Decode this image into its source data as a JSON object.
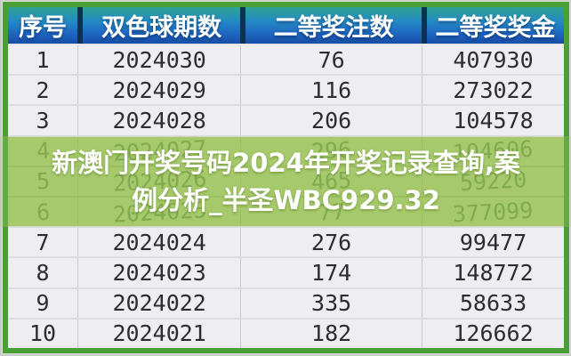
{
  "chart_data": {
    "type": "table",
    "title": "",
    "columns": [
      "序号",
      "双色球期数",
      "二等奖注数",
      "二等奖奖金"
    ],
    "rows": [
      [
        1,
        2024030,
        76,
        407930
      ],
      [
        2,
        2024029,
        116,
        273022
      ],
      [
        3,
        2024028,
        206,
        104578
      ],
      [
        4,
        2024027,
        296,
        104606
      ],
      [
        5,
        2024026,
        465,
        59220
      ],
      [
        6,
        2024025,
        77,
        377099
      ],
      [
        7,
        2024024,
        276,
        99477
      ],
      [
        8,
        2024023,
        174,
        148772
      ],
      [
        9,
        2024022,
        335,
        58633
      ],
      [
        10,
        2024021,
        182,
        126662
      ]
    ],
    "notes": "rows 4-6 are covered by a translucent green watermark band"
  },
  "table": {
    "columns": [
      {
        "label": "序号"
      },
      {
        "label": "双色球期数"
      },
      {
        "label": "二等奖注数"
      },
      {
        "label": "二等奖奖金"
      }
    ],
    "rows": [
      {
        "no": "1",
        "period": "2024030",
        "bets": "76",
        "prize": "407930",
        "tinted": false
      },
      {
        "no": "2",
        "period": "2024029",
        "bets": "116",
        "prize": "273022",
        "tinted": false
      },
      {
        "no": "3",
        "period": "2024028",
        "bets": "206",
        "prize": "104578",
        "tinted": false
      },
      {
        "no": "4",
        "period": "2024027",
        "bets": "296",
        "prize": "104606",
        "tinted": true
      },
      {
        "no": "5",
        "period": "2024026",
        "bets": "465",
        "prize": "59220",
        "tinted": true
      },
      {
        "no": "6",
        "period": "2024025",
        "bets": "77",
        "prize": "377099",
        "tinted": true
      },
      {
        "no": "7",
        "period": "2024024",
        "bets": "276",
        "prize": "99477",
        "tinted": false
      },
      {
        "no": "8",
        "period": "2024023",
        "bets": "174",
        "prize": "148772",
        "tinted": false
      },
      {
        "no": "9",
        "period": "2024022",
        "bets": "335",
        "prize": "58633",
        "tinted": false
      },
      {
        "no": "10",
        "period": "2024021",
        "bets": "182",
        "prize": "126662",
        "tinted": false
      }
    ]
  },
  "overlay": {
    "caption": "新澳门开奖号码2024年开奖记录查询,案例分析_半圣WBC929.32",
    "line1": "新澳门开奖号码2024年开奖记录查询,案",
    "line2": "例分析_半圣WBC929.32"
  },
  "colors": {
    "header_gradient_top": "#2fa392",
    "header_gradient_bottom": "#194da4",
    "header_separator": "#0e3152",
    "frame_green": "#4aa037",
    "band_green": "#a7ca6b",
    "band_text_green": "#74a046",
    "row_background": "#ededf2",
    "row_text": "#2d2d31",
    "caption_text": "#ffffff"
  }
}
